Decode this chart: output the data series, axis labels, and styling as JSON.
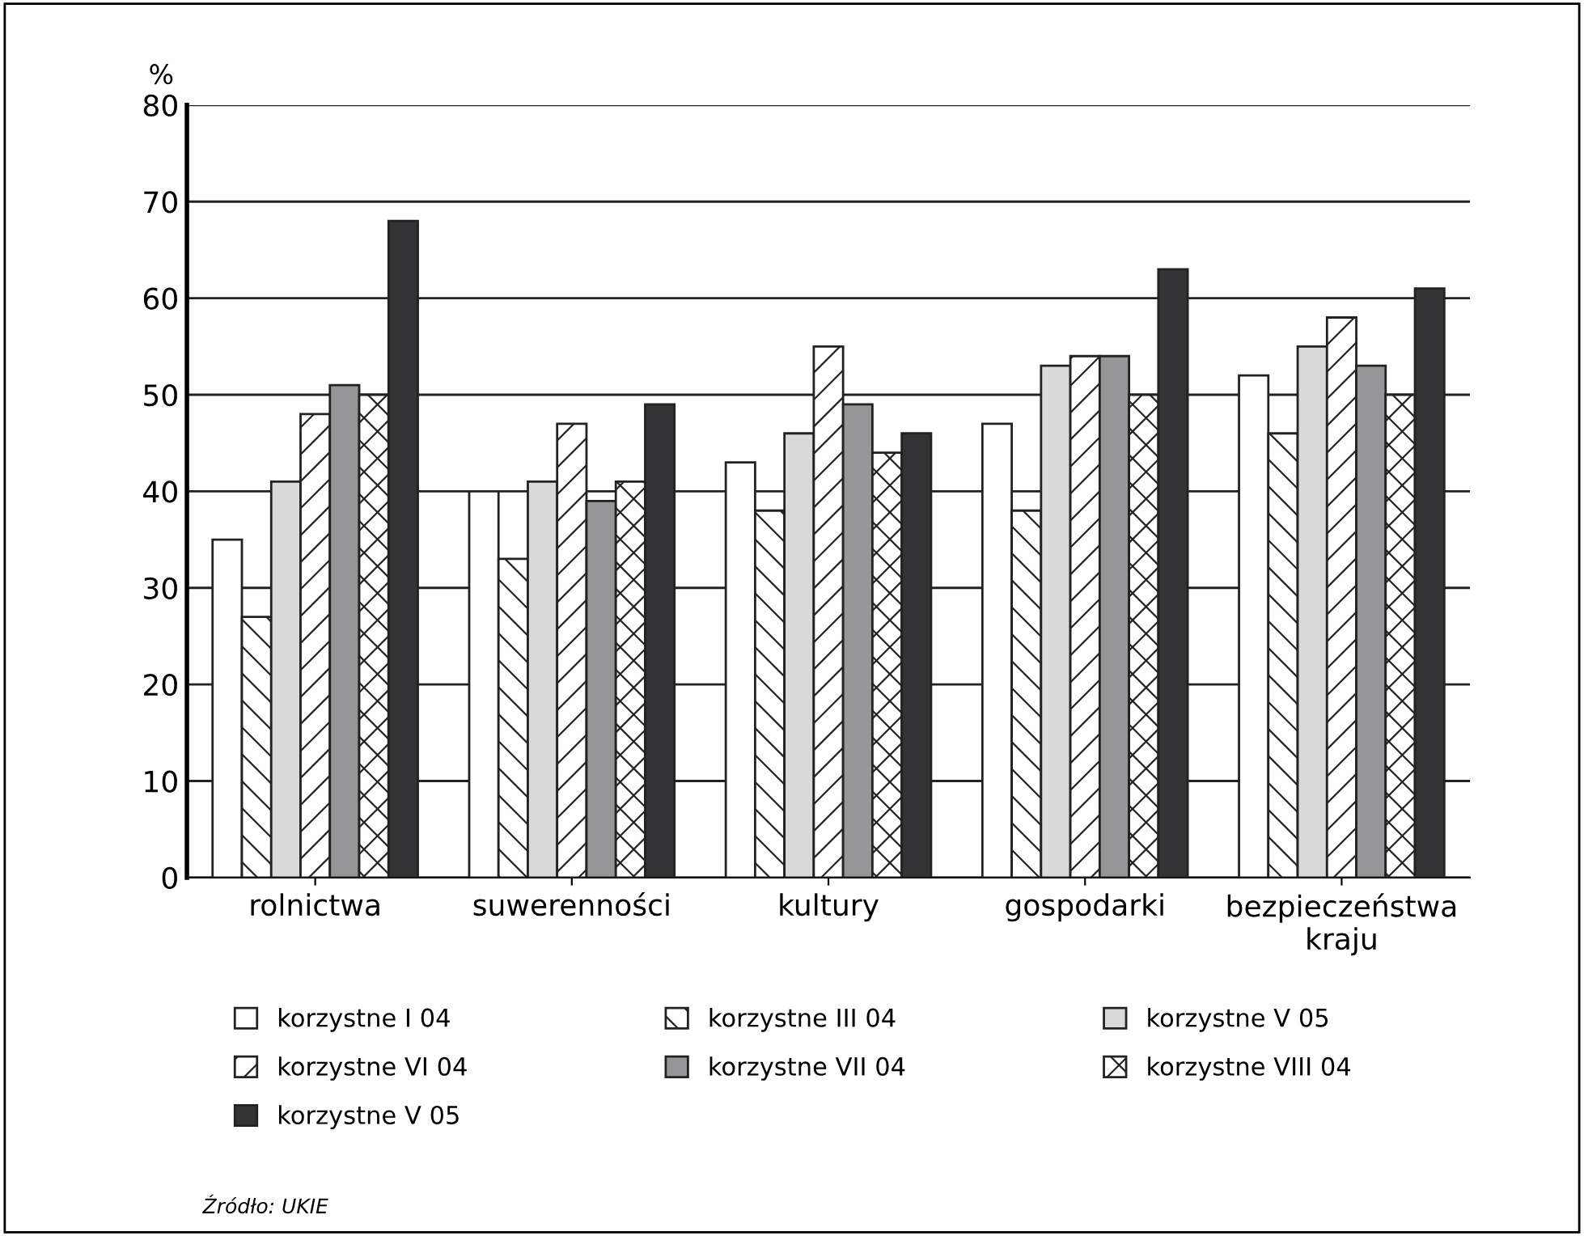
{
  "chart_data": {
    "type": "bar",
    "ylabel": "%",
    "categories": [
      "rolnictwa",
      "suwerenności",
      "kultury",
      "gospodarki",
      "bezpieczeństwa\nkraju"
    ],
    "series": [
      {
        "name": "korzystne I 04",
        "color": "#ffffff",
        "values": [
          35,
          40,
          43,
          47,
          52
        ]
      },
      {
        "name": "korzystne III 04",
        "color": "#222222",
        "values": [
          27,
          33,
          38,
          38,
          46
        ]
      },
      {
        "name": "korzystne V 05",
        "color": "#d9d9d9",
        "values": [
          41,
          41,
          46,
          53,
          55
        ]
      },
      {
        "name": "korzystne VI 04",
        "color": "#222222",
        "values": [
          48,
          47,
          55,
          54,
          58
        ]
      },
      {
        "name": "korzystne VII 04",
        "color": "#969699",
        "values": [
          51,
          39,
          49,
          54,
          53
        ]
      },
      {
        "name": "korzystne VIII 04",
        "color": "#222222",
        "values": [
          50,
          41,
          44,
          50,
          50
        ]
      },
      {
        "name": "korzystne V 05",
        "color": "#333335",
        "values": [
          68,
          49,
          46,
          63,
          61
        ]
      }
    ],
    "ylim": [
      0,
      80
    ],
    "yticks": [
      0,
      10,
      20,
      30,
      40,
      50,
      60,
      70,
      80
    ],
    "grid": "y",
    "legend": "bottom",
    "annotations": [
      "Źródło: UKIE"
    ]
  }
}
